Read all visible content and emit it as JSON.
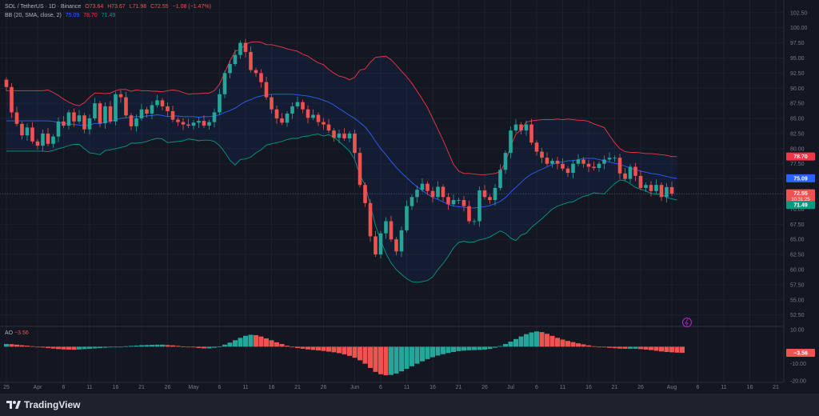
{
  "legend": {
    "symbol": "SOL / TetherUS · 1D · Binance",
    "open": "O73.64",
    "high": "H73.67",
    "low": "L71.98",
    "close": "C72.55",
    "change": "−1.08 (−1.47%)",
    "bb_label": "BB (20, SMA, close, 2)",
    "bb_basis": "75.09",
    "bb_upper": "78.70",
    "bb_lower": "71.49"
  },
  "ao": {
    "label": "AO",
    "value": "−3.56"
  },
  "footer": {
    "brand": "TradingView"
  },
  "price_labels": {
    "bb_upper": "78.70",
    "bb_basis": "75.09",
    "last": "72.55",
    "countdown": "10:31:25",
    "bb_lower": "71.49",
    "ao_value": "−3.56"
  },
  "colors": {
    "up": "#26a69a",
    "down": "#ef5350",
    "basis": "#2962ff",
    "upper_band": "#f23645",
    "lower_band": "#089981",
    "fill": "#2962ff"
  },
  "chart_data": {
    "type": "candlestick",
    "ylim": [
      51,
      103
    ],
    "y_ticks": [
      "52.50",
      "55.00",
      "57.50",
      "60.00",
      "62.50",
      "65.00",
      "67.50",
      "70.00",
      "72.50",
      "75.00",
      "77.50",
      "80.00",
      "82.50",
      "85.00",
      "87.50",
      "90.00",
      "92.50",
      "95.00",
      "97.50",
      "100.00",
      "102.50"
    ],
    "y_tick_values": [
      52.5,
      55,
      57.5,
      60,
      62.5,
      65,
      67.5,
      70,
      72.5,
      75,
      77.5,
      80,
      82.5,
      85,
      87.5,
      90,
      92.5,
      95,
      97.5,
      100,
      102.5
    ],
    "ao_ylim": [
      -21,
      11
    ],
    "ao_ticks": [
      "10.00",
      "-10.00",
      "-20.00"
    ],
    "ao_tick_values": [
      10,
      -10,
      -20
    ],
    "x_ticks": [
      {
        "label": "25",
        "index": 0
      },
      {
        "label": "Apr",
        "index": 6
      },
      {
        "label": "6",
        "index": 11
      },
      {
        "label": "11",
        "index": 16
      },
      {
        "label": "16",
        "index": 21
      },
      {
        "label": "21",
        "index": 26
      },
      {
        "label": "26",
        "index": 31
      },
      {
        "label": "May",
        "index": 36
      },
      {
        "label": "6",
        "index": 41
      },
      {
        "label": "11",
        "index": 46
      },
      {
        "label": "16",
        "index": 51
      },
      {
        "label": "21",
        "index": 56
      },
      {
        "label": "26",
        "index": 61
      },
      {
        "label": "Jun",
        "index": 67
      },
      {
        "label": "6",
        "index": 72
      },
      {
        "label": "11",
        "index": 77
      },
      {
        "label": "16",
        "index": 82
      },
      {
        "label": "21",
        "index": 87
      },
      {
        "label": "26",
        "index": 92
      },
      {
        "label": "Jul",
        "index": 97
      },
      {
        "label": "6",
        "index": 102
      },
      {
        "label": "11",
        "index": 107
      },
      {
        "label": "16",
        "index": 112
      },
      {
        "label": "21",
        "index": 117
      },
      {
        "label": "26",
        "index": 122
      },
      {
        "label": "Aug",
        "index": 128
      },
      {
        "label": "6",
        "index": 133
      },
      {
        "label": "11",
        "index": 138
      },
      {
        "label": "16",
        "index": 143
      },
      {
        "label": "21",
        "index": 148
      }
    ],
    "closes": [
      90.2,
      86.0,
      84.1,
      82.2,
      83.5,
      81.2,
      80.5,
      82.5,
      80.8,
      82.0,
      84.5,
      83.8,
      86.0,
      84.5,
      85.5,
      83.2,
      85.0,
      87.5,
      84.2,
      87.0,
      84.5,
      89.0,
      88.5,
      85.5,
      83.7,
      85.0,
      86.5,
      85.8,
      87.2,
      88.0,
      87.0,
      86.2,
      84.8,
      84.4,
      84.0,
      83.8,
      84.3,
      84.6,
      83.8,
      84.4,
      86.0,
      89.0,
      92.5,
      94.0,
      95.5,
      97.5,
      96.0,
      93.0,
      92.5,
      91.0,
      88.5,
      86.5,
      85.0,
      84.3,
      85.8,
      87.0,
      87.7,
      86.5,
      85.1,
      85.6,
      84.4,
      84.0,
      83.0,
      81.8,
      82.5,
      81.7,
      82.5,
      79.3,
      74.0,
      71.0,
      65.5,
      62.5,
      66.0,
      68.0,
      65.0,
      63.0,
      66.5,
      70.5,
      72.0,
      73.2,
      74.2,
      73.0,
      72.0,
      73.7,
      72.0,
      70.8,
      71.5,
      71.5,
      70.5,
      68.0,
      68.0,
      73.1,
      72.0,
      71.5,
      73.5,
      76.5,
      79.3,
      83.0,
      84.0,
      83.0,
      84.0,
      81.0,
      79.5,
      78.5,
      77.5,
      78.0,
      77.5,
      76.7,
      76.0,
      77.5,
      78.2,
      77.5,
      77.0,
      76.8,
      77.5,
      78.2,
      78.5,
      78.5,
      75.9,
      75.0,
      77.0,
      75.5,
      73.5,
      74.0,
      73.0,
      74.0,
      72.0,
      73.64,
      72.55
    ],
    "ohlc_note": "opens are prior closes; highs/lows estimated from chart",
    "upper_band": [
      89.6,
      89.6,
      89.6,
      89.6,
      89.6,
      89.6,
      89.6,
      89.6,
      89.7,
      89.3,
      88.8,
      88.2,
      87.7,
      87.3,
      87.1,
      87.6,
      88.5,
      89.2,
      89.2,
      89.1,
      89.2,
      89.6,
      89.8,
      89.8,
      89.5,
      89.7,
      89.6,
      89.6,
      89.5,
      89.5,
      89.4,
      89.6,
      89.7,
      89.6,
      89.3,
      89.0,
      89.1,
      89.1,
      89.2,
      89.2,
      89.6,
      90.7,
      92.6,
      94.5,
      96.1,
      96.4,
      97.3,
      97.6,
      97.7,
      97.6,
      97.2,
      97.2,
      97.0,
      96.8,
      96.5,
      96.3,
      96.1,
      95.6,
      95.3,
      94.7,
      94.2,
      93.9,
      93.1,
      92.5,
      92.0,
      91.8,
      91.4,
      91.8,
      93.0,
      93.2,
      94.3,
      95.1,
      95.2,
      95.3,
      94.7,
      93.8,
      92.8,
      91.9,
      90.8,
      89.5,
      88.2,
      86.8,
      85.0,
      83.2,
      81.4,
      79.4,
      77.4,
      76.3,
      75.9,
      75.9,
      75.8,
      75.7,
      75.7,
      75.8,
      75.9,
      76.2,
      77.8,
      80.4,
      82.4,
      83.1,
      84.4,
      84.6,
      84.7,
      84.8,
      84.8,
      84.8,
      84.9,
      84.8,
      84.9,
      84.8,
      84.7,
      84.7,
      84.5,
      84.1,
      83.8,
      83.5,
      82.2,
      81.0,
      80.0,
      79.5,
      79.4,
      79.4,
      79.3,
      79.2,
      79.2,
      79.1,
      79.0,
      78.9,
      78.7,
      78.7
    ],
    "basis": [
      84.6,
      84.6,
      84.6,
      84.6,
      84.6,
      84.6,
      84.6,
      84.6,
      84.6,
      84.5,
      84.4,
      84.2,
      84.1,
      84.0,
      83.9,
      83.8,
      83.9,
      84.2,
      84.1,
      84.4,
      84.5,
      84.8,
      85.0,
      85.1,
      85.2,
      85.3,
      85.3,
      85.4,
      85.5,
      85.6,
      85.5,
      85.3,
      85.4,
      85.4,
      85.3,
      85.3,
      85.3,
      85.2,
      85.3,
      85.3,
      85.4,
      85.6,
      86.0,
      86.3,
      86.7,
      87.3,
      87.8,
      88.1,
      88.5,
      88.7,
      88.9,
      89.0,
      89.0,
      89.0,
      89.0,
      89.0,
      88.9,
      88.8,
      88.7,
      88.5,
      88.3,
      88.0,
      87.7,
      87.2,
      86.6,
      86.1,
      85.5,
      85.0,
      84.3,
      83.6,
      82.5,
      81.2,
      80.0,
      79.0,
      77.9,
      76.9,
      76.0,
      75.2,
      74.4,
      73.7,
      73.1,
      72.5,
      71.9,
      71.6,
      71.2,
      70.8,
      70.5,
      70.4,
      70.3,
      70.2,
      70.2,
      70.3,
      70.4,
      70.6,
      70.9,
      71.3,
      71.9,
      72.8,
      73.6,
      74.4,
      75.2,
      75.8,
      76.2,
      76.6,
      77.0,
      77.4,
      77.7,
      77.8,
      78.0,
      78.0,
      78.2,
      78.4,
      78.4,
      78.4,
      78.2,
      78.0,
      77.8,
      77.6,
      77.4,
      77.1,
      76.8,
      76.5,
      76.3,
      76.1,
      75.9,
      75.8,
      75.6,
      75.4,
      75.2,
      75.09
    ],
    "lower_band": [
      79.6,
      79.6,
      79.6,
      79.6,
      79.6,
      79.6,
      79.6,
      79.6,
      79.5,
      79.7,
      80.0,
      80.2,
      80.5,
      80.7,
      80.7,
      80.0,
      79.3,
      79.2,
      79.0,
      79.7,
      79.8,
      80.0,
      80.2,
      80.4,
      80.9,
      80.9,
      81.0,
      81.2,
      81.5,
      81.7,
      81.6,
      81.0,
      81.1,
      81.2,
      81.3,
      81.6,
      81.5,
      81.3,
      81.4,
      81.4,
      81.2,
      80.5,
      79.4,
      78.1,
      77.3,
      78.2,
      78.3,
      78.6,
      79.3,
      79.8,
      80.6,
      80.8,
      81.0,
      81.2,
      81.5,
      81.7,
      81.7,
      82.0,
      82.1,
      82.3,
      82.4,
      82.1,
      82.3,
      81.9,
      81.2,
      80.4,
      79.6,
      78.2,
      75.6,
      74.0,
      70.7,
      67.3,
      64.8,
      62.7,
      61.1,
      60.0,
      59.2,
      58.5,
      58.0,
      57.9,
      58.0,
      58.2,
      58.8,
      60.0,
      61.0,
      62.2,
      63.6,
      64.5,
      64.7,
      64.5,
      64.6,
      64.9,
      65.1,
      65.4,
      65.9,
      66.4,
      66.0,
      65.2,
      64.8,
      65.7,
      66.0,
      67.0,
      67.7,
      68.4,
      69.2,
      70.0,
      70.5,
      70.8,
      71.1,
      71.2,
      71.7,
      72.1,
      72.3,
      72.7,
      72.6,
      72.5,
      73.4,
      74.2,
      74.8,
      74.7,
      74.2,
      73.6,
      73.3,
      73.0,
      72.6,
      72.5,
      72.5,
      71.9,
      71.7,
      71.49
    ],
    "ao_values": [
      1.6,
      1.5,
      1.2,
      0.9,
      0.6,
      0.3,
      -0.1,
      -0.5,
      -0.8,
      -1.1,
      -1.4,
      -1.6,
      -1.7,
      -1.8,
      -1.6,
      -1.4,
      -1.2,
      -1.0,
      -0.8,
      -0.6,
      -0.4,
      -0.2,
      0.0,
      0.3,
      0.5,
      0.7,
      0.9,
      1.0,
      1.1,
      1.2,
      1.2,
      1.0,
      0.8,
      0.5,
      0.2,
      -0.1,
      -0.4,
      -0.8,
      -1.0,
      -1.0,
      -0.6,
      0.2,
      1.2,
      2.4,
      3.8,
      5.2,
      6.4,
      7.0,
      6.8,
      6.0,
      4.9,
      3.8,
      2.6,
      1.6,
      0.6,
      -0.2,
      -0.8,
      -1.2,
      -1.6,
      -1.9,
      -2.2,
      -2.5,
      -2.9,
      -3.3,
      -3.8,
      -4.5,
      -5.4,
      -6.5,
      -8.0,
      -10.0,
      -12.5,
      -14.8,
      -16.2,
      -16.8,
      -16.6,
      -15.8,
      -14.5,
      -13.0,
      -11.5,
      -10.0,
      -8.6,
      -7.3,
      -6.2,
      -5.2,
      -4.4,
      -3.7,
      -3.1,
      -2.6,
      -2.3,
      -2.1,
      -2.0,
      -1.9,
      -1.7,
      -1.3,
      -0.6,
      0.4,
      1.6,
      3.0,
      4.5,
      6.0,
      7.4,
      8.4,
      9.0,
      8.6,
      7.6,
      6.4,
      5.2,
      4.2,
      3.4,
      2.7,
      2.0,
      1.4,
      0.8,
      0.3,
      -0.1,
      -0.4,
      -0.7,
      -0.9,
      -1.1,
      -1.2,
      -1.2,
      -1.2,
      -1.4,
      -1.7,
      -2.0,
      -2.4,
      -2.8,
      -3.1,
      -3.3,
      -3.5,
      -3.56
    ]
  }
}
